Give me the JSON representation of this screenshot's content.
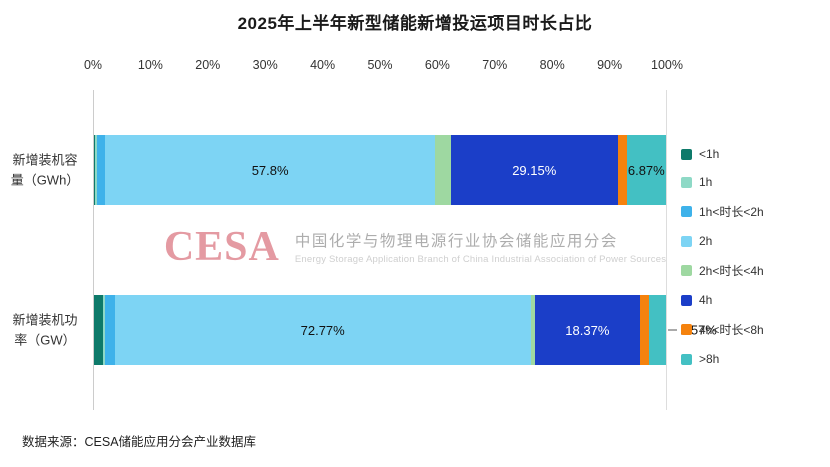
{
  "title": "2025年上半年新型储能新增投运项目时长占比",
  "source": "数据来源：CESA储能应用分会产业数据库",
  "watermark": {
    "logo": "CESA",
    "line_cn": "中国化学与物理电源行业协会储能应用分会",
    "line_en": "Energy Storage Application Branch of China Industrial Association of Power Sources"
  },
  "chart_data": {
    "type": "bar",
    "stacked": true,
    "orientation": "horizontal",
    "xlim": [
      0,
      100
    ],
    "x_ticks": [
      "0%",
      "10%",
      "20%",
      "30%",
      "40%",
      "50%",
      "60%",
      "70%",
      "80%",
      "90%",
      "100%"
    ],
    "grid": "edges-only",
    "legend_position": "right",
    "legend": [
      {
        "name": "<1h",
        "color": "#0e7a6a"
      },
      {
        "name": "1h",
        "color": "#8ed9c6"
      },
      {
        "name": "1h<时长<2h",
        "color": "#3eb2ea"
      },
      {
        "name": "2h",
        "color": "#7dd4f4"
      },
      {
        "name": "2h<时长<4h",
        "color": "#9ed8a1"
      },
      {
        "name": "4h",
        "color": "#1b3ec8"
      },
      {
        "name": "4h<时长<8h",
        "color": "#f5820d"
      },
      {
        "name": ">8h",
        "color": "#43c0c3"
      }
    ],
    "bars": [
      {
        "category": "新增装机容量（GWh）",
        "category_lines": [
          "新增装机容",
          "量（GWh）"
        ],
        "segments": [
          {
            "series": "<1h",
            "value": 0.2
          },
          {
            "series": "1h",
            "value": 0.4
          },
          {
            "series": "1h<时长<2h",
            "value": 1.3
          },
          {
            "series": "2h",
            "value": 57.8,
            "label": "57.8%",
            "label_color": "#111111"
          },
          {
            "series": "2h<时长<4h",
            "value": 2.7
          },
          {
            "series": "4h",
            "value": 29.15,
            "label": "29.15%",
            "label_color": "#ffffff"
          },
          {
            "series": "4h<时长<8h",
            "value": 1.58
          },
          {
            "series": ">8h",
            "value": 6.87,
            "label": "6.87%",
            "label_color": "#111111"
          }
        ]
      },
      {
        "category": "新增装机功率（GW）",
        "category_lines": [
          "新增装机功",
          "率（GW）"
        ],
        "segments": [
          {
            "series": "<1h",
            "value": 1.6
          },
          {
            "series": "1h",
            "value": 0.4
          },
          {
            "series": "1h<时长<2h",
            "value": 1.6
          },
          {
            "series": "2h",
            "value": 72.77,
            "label": "72.77%",
            "label_color": "#111111"
          },
          {
            "series": "2h<时长<4h",
            "value": 0.7
          },
          {
            "series": "4h",
            "value": 18.37,
            "label": "18.37%",
            "label_color": "#ffffff"
          },
          {
            "series": "4h<时长<8h",
            "value": 1.57
          },
          {
            "series": ">8h",
            "value": 2.99
          }
        ],
        "callout": {
          "series": "4h<时长<8h",
          "text": "1.57%"
        }
      }
    ]
  }
}
